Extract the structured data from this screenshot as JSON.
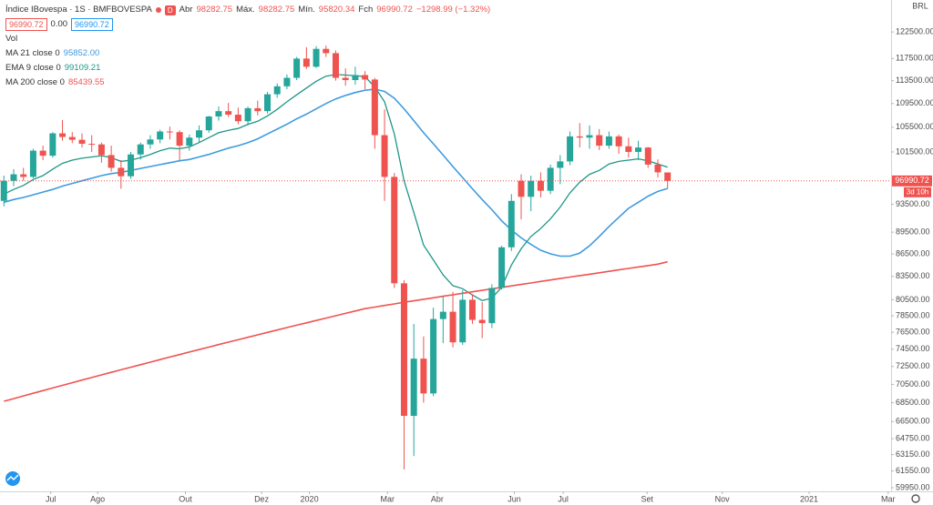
{
  "chart_data": {
    "type": "candlestick",
    "title": "Índice IBovespa · 1S · BMFBOVESPA",
    "interval_badge": "D",
    "currency": "BRL",
    "open_label": "Abr",
    "high_label": "Máx.",
    "low_label": "Mín.",
    "close_label": "Fch",
    "change": "−1298.99 (−1.32%)",
    "spread": "0.00",
    "volume_label": "Vol",
    "countdown": "3d 10h",
    "up_color": "#26a69a",
    "down_color": "#ef5350",
    "log_scale": true,
    "grid": false,
    "open": [
      94000,
      97000,
      98000,
      97600,
      101700,
      100900,
      104500,
      103900,
      103450,
      102800,
      102700,
      101000,
      99000,
      97700,
      101100,
      102700,
      103500,
      104800,
      104700,
      102500,
      103800,
      105000,
      107300,
      108200,
      107600,
      106500,
      108700,
      108200,
      111100,
      112500,
      114000,
      117500,
      116000,
      119300,
      118500,
      114000,
      113600,
      114500,
      113700,
      104200,
      97600,
      82600,
      67100,
      73400,
      69500,
      78100,
      79000,
      75300,
      80500,
      78000,
      77600,
      82000,
      87400,
      97000,
      94600,
      97000,
      95500,
      99000,
      100000,
      104000,
      103800,
      104200,
      102500,
      104000,
      102400,
      101500,
      102200,
      99500,
      98282.75
    ],
    "high": [
      97800,
      98800,
      99000,
      102000,
      102500,
      104700,
      106700,
      104700,
      104500,
      104200,
      103000,
      102500,
      100200,
      101500,
      103000,
      104200,
      105100,
      105600,
      105000,
      104300,
      105800,
      107400,
      109000,
      109600,
      108800,
      109000,
      110000,
      111500,
      113000,
      114600,
      117800,
      119600,
      119800,
      119900,
      119000,
      115700,
      116000,
      115200,
      114000,
      108500,
      98200,
      83000,
      77500,
      76000,
      79500,
      81000,
      81500,
      81700,
      81200,
      80200,
      82500,
      87600,
      95000,
      98000,
      97800,
      98300,
      99500,
      101000,
      104800,
      106200,
      105800,
      105200,
      104800,
      104300,
      103800,
      103300,
      102300,
      100300,
      98282.75
    ],
    "low": [
      93200,
      96200,
      97000,
      97400,
      100200,
      100600,
      103300,
      102900,
      102200,
      101500,
      99800,
      98400,
      95800,
      97300,
      100300,
      102000,
      102900,
      103500,
      100200,
      101700,
      103000,
      104600,
      106600,
      107200,
      106000,
      105800,
      107500,
      107800,
      110500,
      112000,
      113600,
      115600,
      115800,
      117800,
      113500,
      112600,
      112800,
      112000,
      102000,
      94000,
      82000,
      61700,
      63000,
      68500,
      69200,
      75200,
      74700,
      75000,
      77500,
      75800,
      77000,
      81800,
      86900,
      91300,
      92500,
      94500,
      95000,
      96500,
      99400,
      102200,
      102000,
      101800,
      102000,
      101200,
      100600,
      100200,
      99000,
      97500,
      95820.34
    ],
    "close": [
      97000,
      98000,
      97600,
      101700,
      100900,
      104500,
      103900,
      103450,
      102800,
      102700,
      101000,
      99000,
      97700,
      101100,
      102700,
      103500,
      104800,
      104700,
      102500,
      103800,
      105000,
      107300,
      108200,
      107600,
      106500,
      108700,
      108200,
      111100,
      112500,
      114000,
      117500,
      116000,
      119300,
      118500,
      114000,
      113600,
      114500,
      113700,
      104200,
      97600,
      82600,
      67100,
      73400,
      69500,
      78100,
      79000,
      75300,
      80500,
      78000,
      77600,
      82000,
      87400,
      94000,
      94600,
      97000,
      95500,
      99000,
      100000,
      104000,
      103800,
      104200,
      102500,
      104000,
      102400,
      101500,
      102200,
      99500,
      98300,
      96990.72
    ],
    "series": [
      {
        "name": "MA 21 close 0",
        "color": "#3d9be0",
        "last_label": "95852.00",
        "values": [
          93800,
          94200,
          94500,
          94900,
          95300,
          95700,
          96200,
          96600,
          97000,
          97400,
          97800,
          98100,
          98300,
          98600,
          98900,
          99200,
          99500,
          99800,
          100100,
          100300,
          100700,
          101100,
          101600,
          102100,
          102500,
          103000,
          103600,
          104400,
          105200,
          106000,
          106900,
          107700,
          108600,
          109500,
          110300,
          110900,
          111400,
          111800,
          112000,
          111600,
          110400,
          108600,
          106600,
          104600,
          102800,
          101000,
          99200,
          97500,
          95800,
          94200,
          92700,
          91100,
          89800,
          88700,
          87800,
          87000,
          86500,
          86200,
          86200,
          86600,
          87600,
          88900,
          90300,
          91600,
          92900,
          93800,
          94700,
          95400,
          95852
        ]
      },
      {
        "name": "EMA 9 close 0",
        "color": "#1e9686",
        "last_label": "99109.21",
        "values": [
          95000,
          95700,
          96300,
          97200,
          97800,
          98800,
          99700,
          100200,
          100500,
          100700,
          100900,
          100600,
          100000,
          100200,
          100600,
          101100,
          101700,
          102100,
          102000,
          102300,
          103000,
          103800,
          104600,
          105000,
          105300,
          106000,
          106500,
          107400,
          108500,
          109800,
          111000,
          112200,
          113400,
          114300,
          114600,
          114500,
          114400,
          114200,
          112400,
          109800,
          104400,
          97000,
          92300,
          87700,
          85700,
          83700,
          82300,
          81900,
          81100,
          80400,
          80700,
          82100,
          85000,
          87200,
          88900,
          90000,
          91400,
          93100,
          95200,
          96800,
          98000,
          98600,
          99600,
          100000,
          100200,
          100400,
          100100,
          99600,
          99109.21
        ]
      },
      {
        "name": "MA 200 close 0",
        "color": "#ef5350",
        "last_label": "85439.55",
        "values": [
          68650,
          68940,
          69230,
          69520,
          69810,
          70100,
          70390,
          70680,
          70970,
          71260,
          71550,
          71840,
          72130,
          72420,
          72710,
          73000,
          73290,
          73580,
          73870,
          74160,
          74450,
          74740,
          75030,
          75320,
          75610,
          75900,
          76190,
          76480,
          76770,
          77060,
          77350,
          77640,
          77930,
          78220,
          78510,
          78800,
          79090,
          79380,
          79580,
          79780,
          79980,
          80180,
          80370,
          80560,
          80750,
          80940,
          81130,
          81320,
          81510,
          81700,
          81890,
          82080,
          82270,
          82460,
          82650,
          82840,
          83030,
          83220,
          83410,
          83600,
          83790,
          83980,
          84170,
          84360,
          84550,
          84740,
          84930,
          85120,
          85439.55
        ]
      }
    ],
    "xlim": [
      -0.4,
      90.9
    ],
    "xticks": [
      {
        "value": 4.8,
        "label": "Jul"
      },
      {
        "value": 9.6,
        "label": "Ago"
      },
      {
        "value": 18.6,
        "label": "Out"
      },
      {
        "value": 26.4,
        "label": "Dez"
      },
      {
        "value": 31.3,
        "label": "2020"
      },
      {
        "value": 39.3,
        "label": "Mar"
      },
      {
        "value": 44.4,
        "label": "Abr"
      },
      {
        "value": 52.3,
        "label": "Jun"
      },
      {
        "value": 57.3,
        "label": "Jul"
      },
      {
        "value": 65.9,
        "label": "Set"
      },
      {
        "value": 73.6,
        "label": "Nov"
      },
      {
        "value": 82.5,
        "label": "2021"
      },
      {
        "value": 90.6,
        "label": "Mar"
      }
    ],
    "ylim": [
      59610,
      128800
    ],
    "yticks": [
      {
        "value": 122500,
        "label": "122500.00"
      },
      {
        "value": 117500,
        "label": "117500.00"
      },
      {
        "value": 113500,
        "label": "113500.00"
      },
      {
        "value": 109500,
        "label": "109500.00"
      },
      {
        "value": 105500,
        "label": "105500.00"
      },
      {
        "value": 101500,
        "label": "101500.00"
      },
      {
        "value": 93500,
        "label": "93500.00"
      },
      {
        "value": 89500,
        "label": "89500.00"
      },
      {
        "value": 86500,
        "label": "86500.00"
      },
      {
        "value": 83500,
        "label": "83500.00"
      },
      {
        "value": 80500,
        "label": "80500.00"
      },
      {
        "value": 78500,
        "label": "78500.00"
      },
      {
        "value": 76500,
        "label": "76500.00"
      },
      {
        "value": 74500,
        "label": "74500.00"
      },
      {
        "value": 72500,
        "label": "72500.00"
      },
      {
        "value": 70500,
        "label": "70500.00"
      },
      {
        "value": 68500,
        "label": "68500.00"
      },
      {
        "value": 66500,
        "label": "66500.00"
      },
      {
        "value": 64750,
        "label": "64750.00"
      },
      {
        "value": 63150,
        "label": "63150.00"
      },
      {
        "value": 61550,
        "label": "61550.00"
      },
      {
        "value": 59950,
        "label": "59950.00"
      }
    ]
  }
}
